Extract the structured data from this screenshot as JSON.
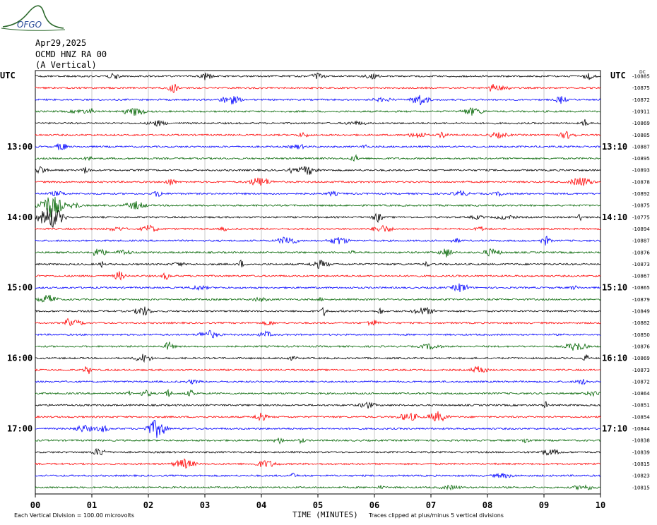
{
  "logo": {
    "text": "OFGO"
  },
  "header": {
    "date": "Apr29,2025",
    "station": "OCMD HNZ RA 00",
    "component": "(A Vertical)"
  },
  "left_tz": "UTC",
  "right_tz": "UTC",
  "right_top_unit": "DC",
  "footer": {
    "scale": "Each Vertical Division =  100.00 microvolts",
    "xlabel": "TIME (MINUTES)",
    "clip_note": "Traces clipped at plus/minus 5 vertical divisions"
  },
  "colors": {
    "trace_cycle": [
      "#000000",
      "#ff0000",
      "#0000ff",
      "#006400"
    ],
    "grid": "#c8c8c8",
    "logo": "#2d6a2d"
  },
  "chart_data": {
    "type": "line",
    "xlabel": "TIME (MINUTES)",
    "x_ticks": [
      "00",
      "01",
      "02",
      "03",
      "04",
      "05",
      "06",
      "07",
      "08",
      "09",
      "10"
    ],
    "xlim": [
      0,
      10
    ],
    "left_hour_labels": [
      {
        "row": 6,
        "text": "13:00"
      },
      {
        "row": 12,
        "text": "14:00"
      },
      {
        "row": 18,
        "text": "15:00"
      },
      {
        "row": 24,
        "text": "16:00"
      },
      {
        "row": 30,
        "text": "17:00"
      }
    ],
    "right_hour_labels": [
      {
        "row": 6,
        "text": "13:10"
      },
      {
        "row": 12,
        "text": "14:10"
      },
      {
        "row": 18,
        "text": "15:10"
      },
      {
        "row": 24,
        "text": "16:10"
      },
      {
        "row": 30,
        "text": "17:10"
      }
    ],
    "dc_offsets": [
      "-10885",
      "-10875",
      "-10872",
      "-10911",
      "-10869",
      "-10885",
      "-10887",
      "-10895",
      "-10893",
      "-10878",
      "-10892",
      "-10875",
      "-10775",
      "-10894",
      "-10887",
      "-10876",
      "-10873",
      "-10867",
      "-10865",
      "-10879",
      "-10849",
      "-10882",
      "-10850",
      "-10876",
      "-10869",
      "-10873",
      "-10872",
      "-10864",
      "-10851",
      "-10854",
      "-10844",
      "-10838",
      "-10839",
      "-10815",
      "-10823",
      "-10815"
    ],
    "trace_count": 36,
    "grid": true
  }
}
